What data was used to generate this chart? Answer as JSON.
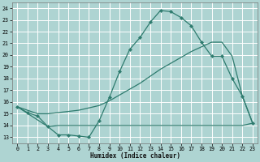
{
  "bg_color": "#aed4d2",
  "grid_color": "#ffffff",
  "line_color": "#2e7b6e",
  "xlabel": "Humidex (Indice chaleur)",
  "xlim": [
    -0.5,
    23.5
  ],
  "ylim": [
    12.5,
    24.5
  ],
  "yticks": [
    13,
    14,
    15,
    16,
    17,
    18,
    19,
    20,
    21,
    22,
    23,
    24
  ],
  "xticks": [
    0,
    1,
    2,
    3,
    4,
    5,
    6,
    7,
    8,
    9,
    10,
    11,
    12,
    13,
    14,
    15,
    16,
    17,
    18,
    19,
    20,
    21,
    22,
    23
  ],
  "curve1_x": [
    0,
    1,
    2,
    3,
    4,
    5,
    6,
    7,
    8,
    9,
    10,
    11,
    12,
    13,
    14,
    15,
    16,
    17,
    18,
    19,
    20,
    21,
    22,
    23
  ],
  "curve1_y": [
    15.6,
    15.1,
    14.8,
    13.9,
    13.2,
    13.2,
    13.1,
    13.0,
    14.4,
    16.4,
    18.6,
    20.5,
    21.5,
    22.8,
    23.8,
    23.7,
    23.2,
    22.5,
    21.1,
    19.9,
    19.9,
    18.0,
    16.5,
    14.2
  ],
  "line_upper_x": [
    0,
    1,
    2,
    3,
    4,
    5,
    6,
    7,
    8,
    9,
    10,
    11,
    12,
    13,
    14,
    15,
    16,
    17,
    18,
    19,
    20,
    21,
    22,
    23
  ],
  "line_upper_y": [
    15.6,
    15.3,
    15.0,
    15.0,
    15.1,
    15.2,
    15.3,
    15.5,
    15.7,
    16.1,
    16.6,
    17.1,
    17.6,
    18.2,
    18.8,
    19.3,
    19.8,
    20.3,
    20.7,
    21.1,
    21.1,
    19.9,
    16.5,
    14.2
  ],
  "line_lower_x": [
    0,
    3,
    4,
    5,
    6,
    7,
    8,
    9,
    10,
    11,
    12,
    13,
    14,
    15,
    16,
    17,
    18,
    19,
    20,
    21,
    22,
    23
  ],
  "line_lower_y": [
    15.6,
    13.9,
    14.0,
    14.0,
    14.0,
    14.0,
    14.0,
    14.0,
    14.0,
    14.0,
    14.0,
    14.0,
    14.0,
    14.0,
    14.0,
    14.0,
    14.0,
    14.0,
    14.0,
    14.0,
    14.0,
    14.2
  ]
}
